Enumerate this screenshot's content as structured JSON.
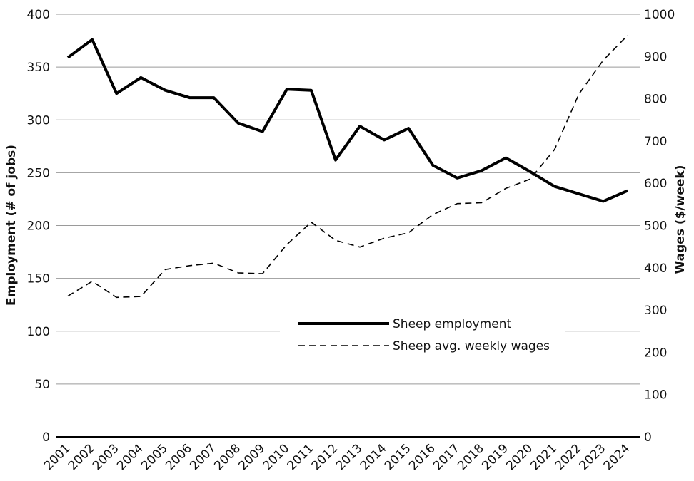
{
  "chart_data": {
    "type": "line",
    "x": [
      "2001",
      "2002",
      "2003",
      "2004",
      "2005",
      "2006",
      "2007",
      "2008",
      "2009",
      "2010",
      "2011",
      "2012",
      "2013",
      "2014",
      "2015",
      "2016",
      "2017",
      "2018",
      "2019",
      "2020",
      "2021",
      "2022",
      "2023",
      "2024"
    ],
    "y_left": {
      "label": "Employment (# of jobs)",
      "range": [
        0,
        400
      ],
      "ticks": [
        0,
        50,
        100,
        150,
        200,
        250,
        300,
        350,
        400
      ]
    },
    "y_right": {
      "label": "Wages ($/week)",
      "range": [
        0,
        1000
      ],
      "ticks": [
        0,
        100,
        200,
        300,
        400,
        500,
        600,
        700,
        800,
        900,
        1000
      ]
    },
    "series": [
      {
        "name": "Sheep employment",
        "axis": "left",
        "style": "solid",
        "values": [
          359,
          376,
          325,
          340,
          328,
          321,
          321,
          297,
          289,
          329,
          328,
          262,
          294,
          281,
          292,
          257,
          245,
          252,
          264,
          251,
          237,
          230,
          223,
          233
        ]
      },
      {
        "name": "Sheep avg. weekly wages",
        "axis": "right",
        "style": "dashed",
        "values": [
          333,
          368,
          330,
          332,
          396,
          405,
          411,
          388,
          386,
          455,
          508,
          465,
          449,
          470,
          483,
          526,
          552,
          554,
          588,
          610,
          680,
          811,
          891,
          950
        ]
      }
    ],
    "grid": true,
    "legend_position": "center-bottom",
    "colors": {
      "lines": "#000000",
      "grid": "#9a9a9a"
    }
  }
}
